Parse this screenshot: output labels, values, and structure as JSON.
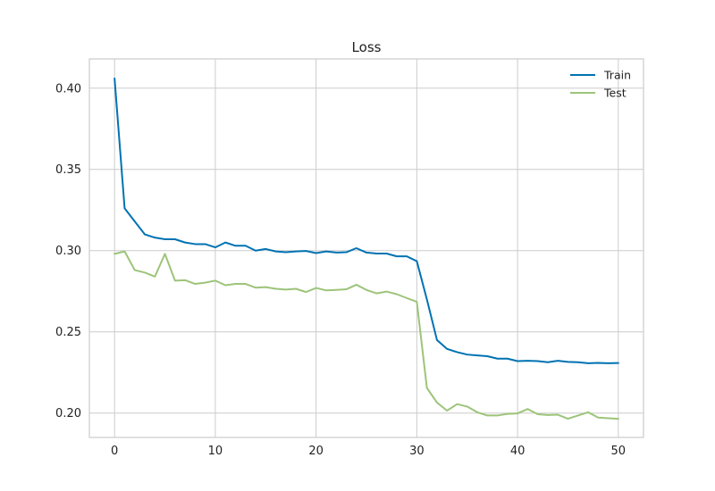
{
  "chart_data": {
    "type": "line",
    "title": "Loss",
    "xlabel": "",
    "ylabel": "",
    "xlim": [
      -2.5,
      52.5
    ],
    "ylim": [
      0.185,
      0.418
    ],
    "xticks": [
      0,
      10,
      20,
      30,
      40,
      50
    ],
    "yticks": [
      0.2,
      0.25,
      0.3,
      0.35,
      0.4
    ],
    "ytick_labels": [
      "0.20",
      "0.25",
      "0.30",
      "0.35",
      "0.40"
    ],
    "grid": true,
    "legend_position": "top-right",
    "x": [
      0,
      1,
      2,
      3,
      4,
      5,
      6,
      7,
      8,
      9,
      10,
      11,
      12,
      13,
      14,
      15,
      16,
      17,
      18,
      19,
      20,
      21,
      22,
      23,
      24,
      25,
      26,
      27,
      28,
      29,
      30,
      31,
      32,
      33,
      34,
      35,
      36,
      37,
      38,
      39,
      40,
      41,
      42,
      43,
      44,
      45,
      46,
      47,
      48,
      49,
      50
    ],
    "series": [
      {
        "name": "Train",
        "color": "#0072b2",
        "values": [
          0.406,
          0.326,
          0.318,
          0.31,
          0.308,
          0.307,
          0.307,
          0.305,
          0.304,
          0.304,
          0.302,
          0.305,
          0.303,
          0.303,
          0.3,
          0.301,
          0.2995,
          0.299,
          0.2995,
          0.2998,
          0.2985,
          0.2995,
          0.2988,
          0.299,
          0.3015,
          0.2988,
          0.2982,
          0.2982,
          0.2965,
          0.2965,
          0.2935,
          0.27,
          0.245,
          0.2395,
          0.2375,
          0.236,
          0.2355,
          0.235,
          0.2335,
          0.2335,
          0.232,
          0.2322,
          0.232,
          0.2313,
          0.2322,
          0.2315,
          0.2313,
          0.2307,
          0.2309,
          0.2307,
          0.2308
        ]
      },
      {
        "name": "Test",
        "color": "#9dc47a",
        "values": [
          0.298,
          0.2995,
          0.288,
          0.2865,
          0.284,
          0.298,
          0.2815,
          0.2818,
          0.2795,
          0.2803,
          0.2815,
          0.2787,
          0.2795,
          0.2795,
          0.2772,
          0.2775,
          0.2765,
          0.276,
          0.2765,
          0.2745,
          0.277,
          0.2755,
          0.2758,
          0.2762,
          0.279,
          0.2758,
          0.2737,
          0.2748,
          0.2732,
          0.2708,
          0.2685,
          0.2155,
          0.2065,
          0.2015,
          0.2055,
          0.204,
          0.2005,
          0.1985,
          0.1985,
          0.1995,
          0.1998,
          0.2025,
          0.1993,
          0.1988,
          0.199,
          0.1965,
          0.1985,
          0.2005,
          0.1972,
          0.1968,
          0.1965
        ]
      }
    ]
  }
}
